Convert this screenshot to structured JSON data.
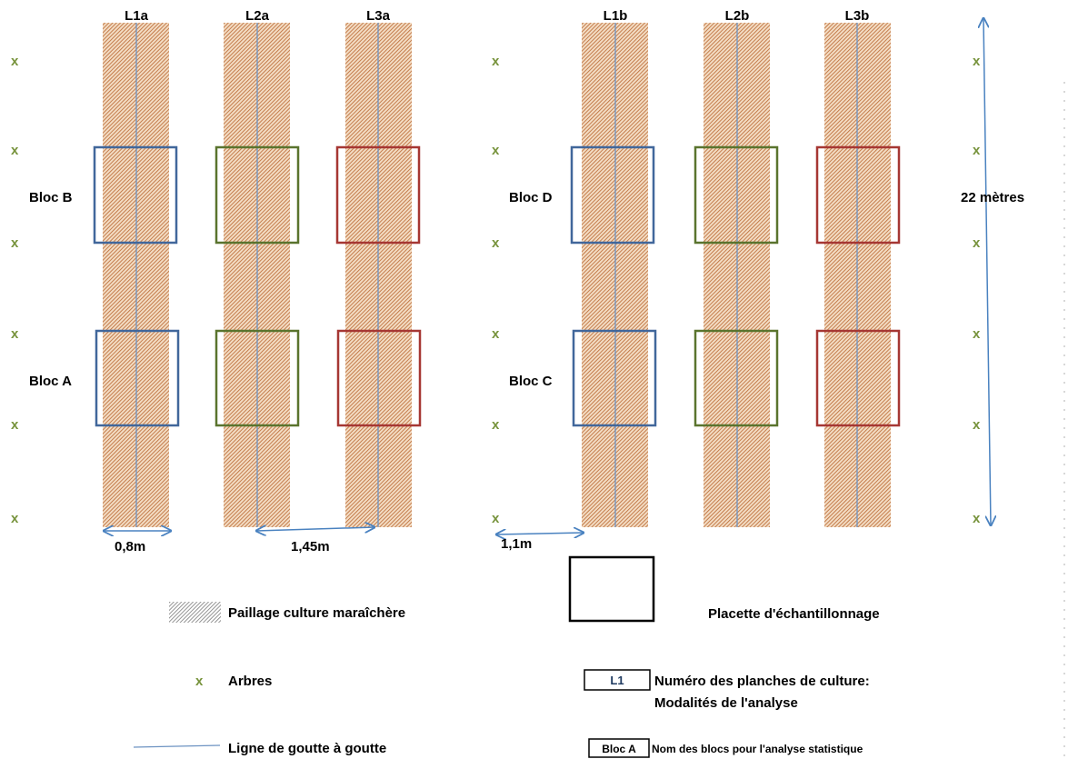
{
  "plots_left": {
    "beds": [
      "L1a",
      "L2a",
      "L3a"
    ],
    "blocks": [
      "Bloc B",
      "Bloc A"
    ]
  },
  "plots_right": {
    "beds": [
      "L1b",
      "L2b",
      "L3b"
    ],
    "blocks": [
      "Bloc D",
      "Bloc C"
    ]
  },
  "tree_symbol": "x",
  "dimensions": {
    "bed_width": "0,8m",
    "bed_spacing": "1,45m",
    "edge_spacing": "1,1m",
    "length": "22 mètres"
  },
  "legend": {
    "mulch": "Paillage culture maraîchère",
    "plot": "Placette d'échantillonnage",
    "trees_symbol": "x",
    "trees": "Arbres",
    "bed_code": "L1",
    "bed_desc_1": "Numéro des planches de culture:",
    "bed_desc_2": "Modalités de l'analyse",
    "drip": "Ligne de goutte à goutte",
    "block_code": "Bloc A",
    "block_desc": "Nom des blocs pour l'analyse statistique"
  },
  "colors": {
    "bed": "#c87a44",
    "drip": "#6d93c2",
    "blue": "#41679b",
    "green": "#5a742e",
    "red": "#a63733",
    "tree": "#77933c",
    "arrow": "#4a82c0"
  }
}
